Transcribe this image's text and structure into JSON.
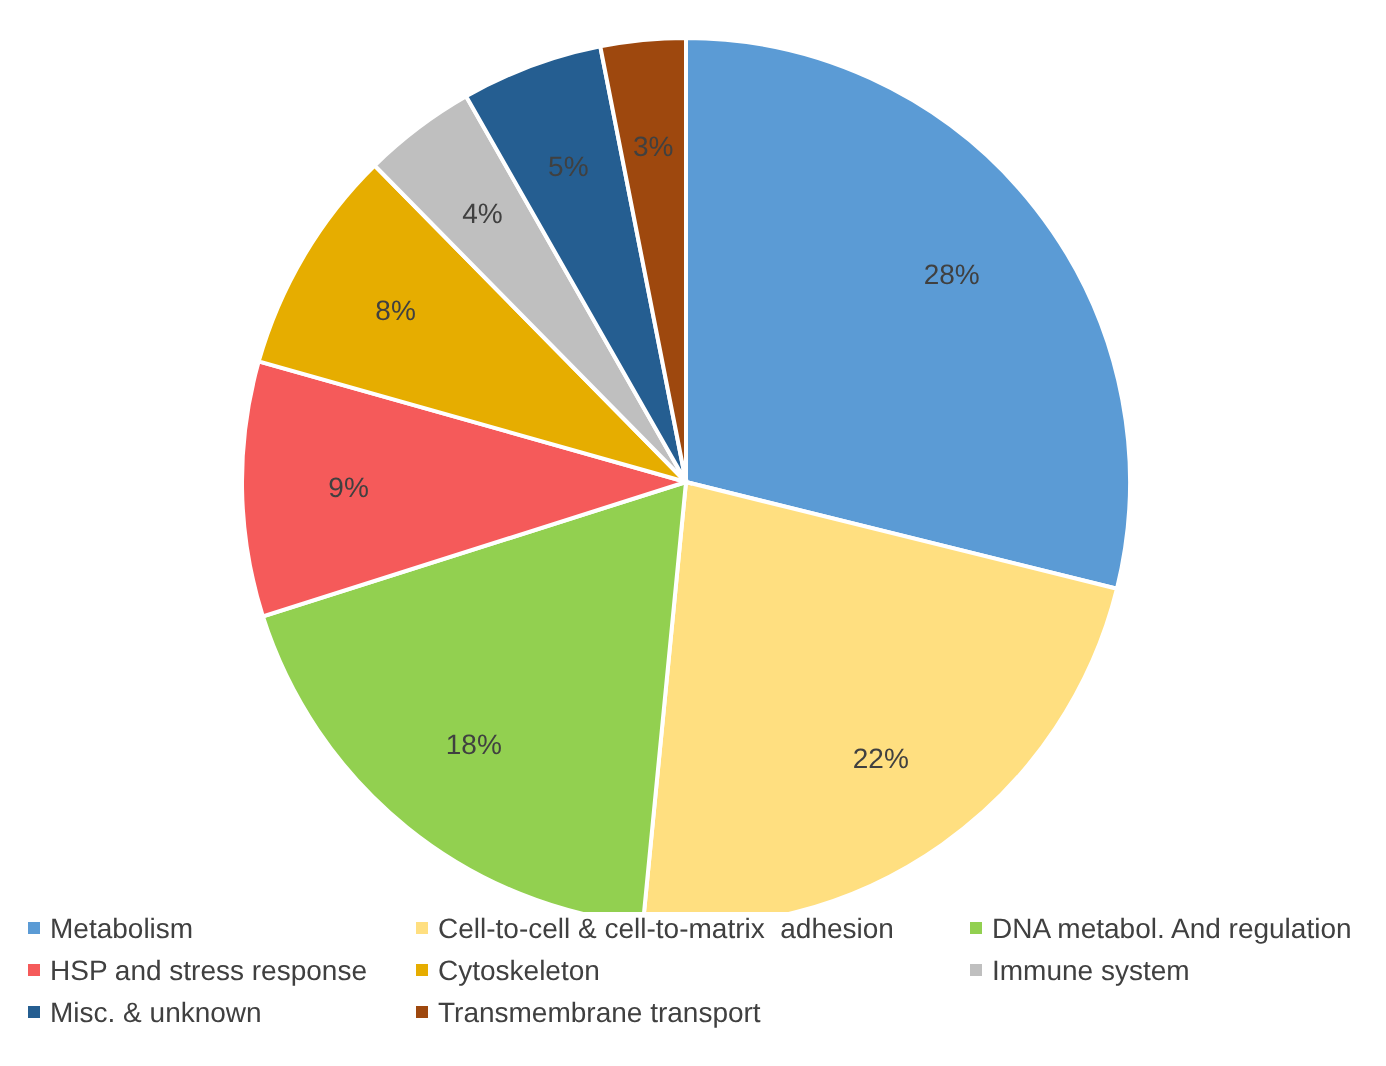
{
  "chart_data": {
    "type": "pie",
    "categories": [
      "Metabolism",
      "Cell-to-cell & cell-to-matrix  adhesion",
      "DNA metabol. And regulation",
      "HSP and stress response",
      "Cytoskeleton",
      "Immune system",
      "Misc. & unknown",
      "Transmembrane transport"
    ],
    "values": [
      28,
      22,
      18,
      9,
      8,
      4,
      5,
      3
    ],
    "colors": [
      "#5b9bd5",
      "#ffdf80",
      "#92d050",
      "#f55a5a",
      "#e6ad00",
      "#bfbfbf",
      "#255e91",
      "#9e480e"
    ],
    "value_labels": [
      "28%",
      "22%",
      "18%",
      "9%",
      "8%",
      "4%",
      "5%",
      "3%"
    ],
    "legend": "bottom"
  }
}
